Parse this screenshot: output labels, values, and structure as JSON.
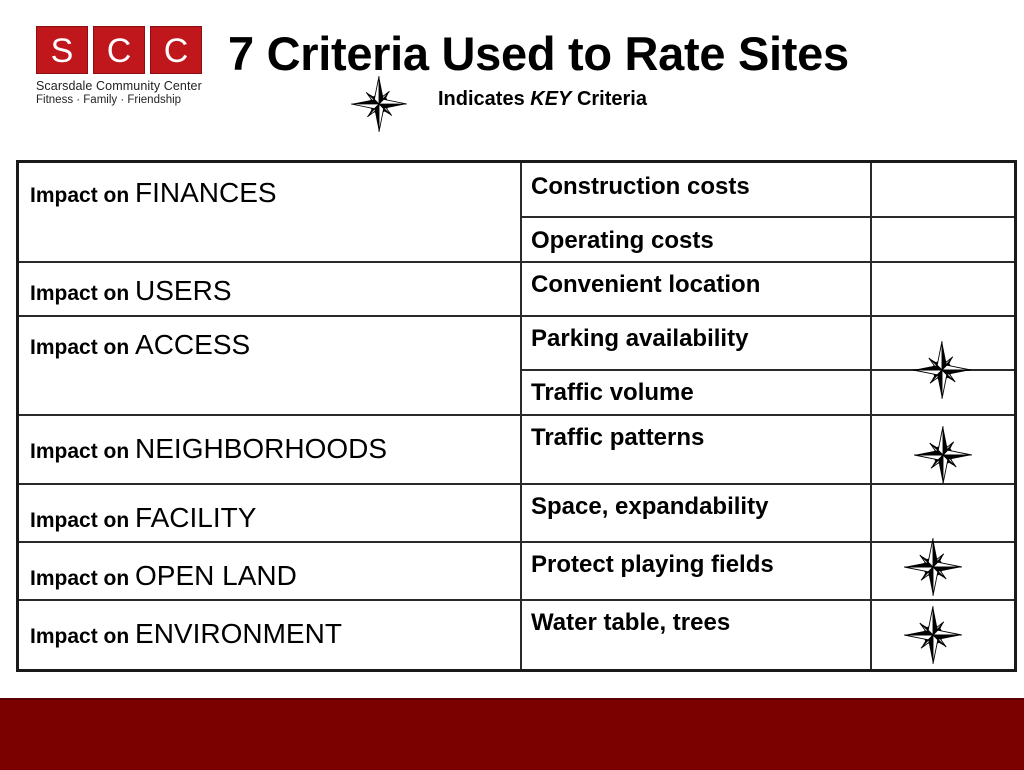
{
  "logo": {
    "letters": [
      "S",
      "C",
      "C"
    ],
    "name": "Scarsdale Community Center",
    "tagline": "Fitness · Family · Friendship"
  },
  "title": "7 Criteria Used to Rate Sites",
  "legend": {
    "prefix": "Indicates ",
    "key": "KEY",
    "suffix": " Criteria",
    "icon": "compass-star-icon"
  },
  "table": {
    "impact_prefix": "Impact on",
    "categories": [
      {
        "name": "FINANCES"
      },
      {
        "name": "USERS"
      },
      {
        "name": "ACCESS"
      },
      {
        "name": "NEIGHBORHOODS"
      },
      {
        "name": "FACILITY"
      },
      {
        "name": "OPEN LAND"
      },
      {
        "name": "ENVIRONMENT"
      }
    ],
    "criteria": [
      {
        "label": "Construction costs",
        "key": false
      },
      {
        "label": "Operating costs",
        "key": false
      },
      {
        "label": "Convenient location",
        "key": false
      },
      {
        "label": "Parking availability",
        "key": true
      },
      {
        "label": "Traffic volume",
        "key": true
      },
      {
        "label": "Traffic patterns",
        "key": true
      },
      {
        "label": "Space, expandability",
        "key": false
      },
      {
        "label": "Protect playing fields",
        "key": true
      },
      {
        "label": "Water table, trees",
        "key": true
      }
    ]
  },
  "colors": {
    "logo_red": "#c0171c",
    "footer": "#7b0000",
    "border": "#1a1a1a"
  }
}
